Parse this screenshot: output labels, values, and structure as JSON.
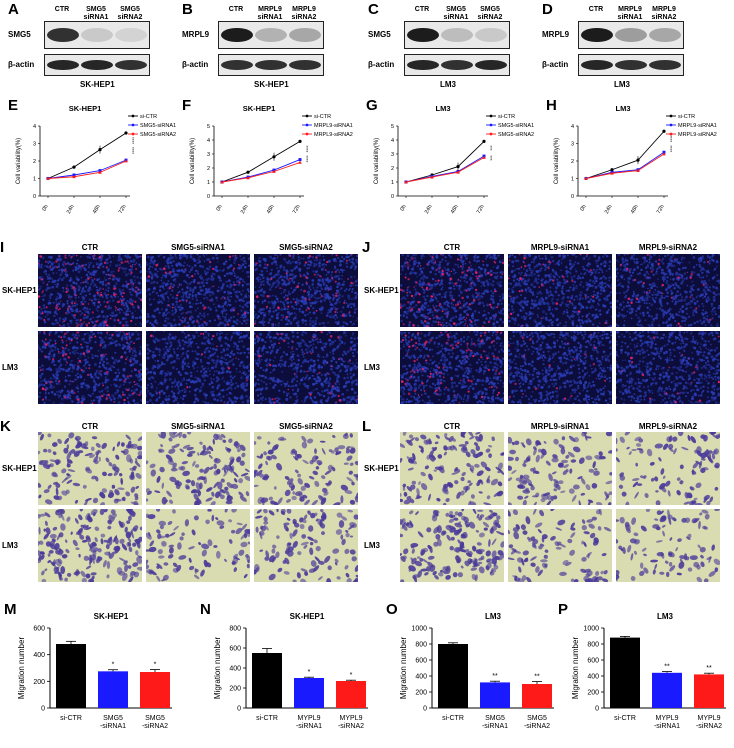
{
  "blots": [
    {
      "letter": "A",
      "lanes": [
        "CTR",
        "SMG5\nsiRNA1",
        "SMG5\nsiRNA2"
      ],
      "target": "SMG5",
      "loading": "β-actin",
      "cell": "SK-HEP1"
    },
    {
      "letter": "B",
      "lanes": [
        "CTR",
        "MRPL9\nsiRNA1",
        "MRPL9\nsiRNA2"
      ],
      "target": "MRPL9",
      "loading": "β-actin",
      "cell": "SK-HEP1"
    },
    {
      "letter": "C",
      "lanes": [
        "CTR",
        "SMG5\nsiRNA1",
        "SMG5\nsiRNA2"
      ],
      "target": "SMG5",
      "loading": "β-actin",
      "cell": "LM3"
    },
    {
      "letter": "D",
      "lanes": [
        "CTR",
        "MRPL9\nsiRNA1",
        "MRPL9\nsiRNA2"
      ],
      "target": "MRPL9",
      "loading": "β-actin",
      "cell": "LM3"
    }
  ],
  "imaging": {
    "I": {
      "letter": "I",
      "cols": [
        "CTR",
        "SMG5-siRNA1",
        "SMG5-siRNA2"
      ],
      "rows": [
        "SK-HEP1",
        "LM3"
      ]
    },
    "J": {
      "letter": "J",
      "cols": [
        "CTR",
        "MRPL9-siRNA1",
        "MRPL9-siRNA2"
      ],
      "rows": [
        "SK-HEP1",
        "LM3"
      ]
    },
    "K": {
      "letter": "K",
      "cols": [
        "CTR",
        "SMG5-siRNA1",
        "SMG5-siRNA2"
      ],
      "rows": [
        "SK-HEP1",
        "LM3"
      ]
    },
    "L": {
      "letter": "L",
      "cols": [
        "CTR",
        "MRPL9-siRNA1",
        "MRPL9-siRNA2"
      ],
      "rows": [
        "SK-HEP1",
        "LM3"
      ]
    }
  },
  "colors": {
    "ctr": "#000000",
    "sirna1": "#1a1aff",
    "sirna2": "#ff1a1a",
    "dapi": "#2a3db8",
    "edu": "#e0206a",
    "crystal": "#4a3a9a",
    "membrane": "#d8dcb0"
  },
  "chart_data": [
    {
      "letter": "E",
      "type": "line",
      "title": "SK-HEP1",
      "ylabel": "Cell variability(%)",
      "x": [
        "0h",
        "24h",
        "48h",
        "72h"
      ],
      "ylim": [
        0,
        4
      ],
      "yticks": [
        0,
        1,
        2,
        3,
        4
      ],
      "series": [
        {
          "name": "si-CTR",
          "values": [
            1.0,
            1.65,
            2.65,
            3.6
          ]
        },
        {
          "name": "SMG5-siRNA1",
          "values": [
            1.0,
            1.2,
            1.45,
            2.05
          ]
        },
        {
          "name": "SMG5-siRNA2",
          "values": [
            1.0,
            1.1,
            1.35,
            2.0
          ]
        }
      ],
      "sig": [
        "****",
        "****"
      ]
    },
    {
      "letter": "F",
      "type": "line",
      "title": "SK-HEP1",
      "ylabel": "Cell variability(%)",
      "x": [
        "0h",
        "24h",
        "48h",
        "72h"
      ],
      "ylim": [
        0,
        5
      ],
      "yticks": [
        0,
        1,
        2,
        3,
        4,
        5
      ],
      "series": [
        {
          "name": "si-CTR",
          "values": [
            1.0,
            1.7,
            2.8,
            3.9
          ]
        },
        {
          "name": "MRPL9-siRNA1",
          "values": [
            1.0,
            1.35,
            1.85,
            2.6
          ]
        },
        {
          "name": "MRPL9-siRNA2",
          "values": [
            1.0,
            1.3,
            1.75,
            2.4
          ]
        }
      ],
      "sig": [
        "****",
        "****"
      ]
    },
    {
      "letter": "G",
      "type": "line",
      "title": "LM3",
      "ylabel": "Cell variability(%)",
      "x": [
        "0h",
        "24h",
        "48h",
        "72h"
      ],
      "ylim": [
        0,
        5
      ],
      "yticks": [
        0,
        1,
        2,
        3,
        4,
        5
      ],
      "series": [
        {
          "name": "si-CTR",
          "values": [
            1.0,
            1.5,
            2.1,
            3.9
          ]
        },
        {
          "name": "SMG5-siRNA1",
          "values": [
            1.0,
            1.4,
            1.75,
            2.85
          ]
        },
        {
          "name": "SMG5-siRNA2",
          "values": [
            1.0,
            1.35,
            1.7,
            2.75
          ]
        }
      ],
      "sig": [
        "***",
        "***"
      ]
    },
    {
      "letter": "H",
      "type": "line",
      "title": "LM3",
      "ylabel": "Cell variability(%)",
      "x": [
        "0h",
        "24h",
        "48h",
        "72h"
      ],
      "ylim": [
        0,
        4
      ],
      "yticks": [
        0,
        1,
        2,
        3,
        4
      ],
      "series": [
        {
          "name": "si-CTR",
          "values": [
            1.0,
            1.5,
            2.05,
            3.7
          ]
        },
        {
          "name": "MRPL9-siRNA1",
          "values": [
            1.0,
            1.35,
            1.5,
            2.5
          ]
        },
        {
          "name": "MRPL9-siRNA2",
          "values": [
            1.0,
            1.3,
            1.45,
            2.4
          ]
        }
      ],
      "sig": [
        "****",
        "****"
      ]
    },
    {
      "letter": "M",
      "type": "bar",
      "title": "SK-HEP1",
      "ylabel": "Migration number",
      "categories": [
        "si-CTR",
        "SMG5\n-siRNA1",
        "SMG5\n-siRNA2"
      ],
      "values": [
        480,
        275,
        270
      ],
      "errors": [
        20,
        12,
        18
      ],
      "ylim": [
        0,
        600
      ],
      "yticks": [
        0,
        200,
        400,
        600
      ],
      "sig": [
        "",
        "*",
        "*"
      ]
    },
    {
      "letter": "N",
      "type": "bar",
      "title": "SK-HEP1",
      "ylabel": "Migration number",
      "categories": [
        "si-CTR",
        "MYPL9\n-siRNA1",
        "MYPL9\n-siRNA2"
      ],
      "values": [
        550,
        300,
        270
      ],
      "errors": [
        45,
        8,
        8
      ],
      "ylim": [
        0,
        800
      ],
      "yticks": [
        0,
        200,
        400,
        600,
        800
      ],
      "sig": [
        "",
        "*",
        "*"
      ]
    },
    {
      "letter": "O",
      "type": "bar",
      "title": "LM3",
      "ylabel": "Migration number",
      "categories": [
        "si-CTR",
        "SMG5\n-siRNA1",
        "SMG5\n-siRNA2"
      ],
      "values": [
        800,
        320,
        300
      ],
      "errors": [
        15,
        15,
        30
      ],
      "ylim": [
        0,
        1000
      ],
      "yticks": [
        0,
        200,
        400,
        600,
        800,
        1000
      ],
      "sig": [
        "",
        "**",
        "**"
      ]
    },
    {
      "letter": "P",
      "type": "bar",
      "title": "LM3",
      "ylabel": "Migration number",
      "categories": [
        "si-CTR",
        "MYPL9\n-siRNA1",
        "MYPL9\n-siRNA2"
      ],
      "values": [
        880,
        440,
        420
      ],
      "errors": [
        15,
        15,
        15
      ],
      "ylim": [
        0,
        1000
      ],
      "yticks": [
        0,
        200,
        400,
        600,
        800,
        1000
      ],
      "sig": [
        "",
        "**",
        "**"
      ]
    }
  ]
}
